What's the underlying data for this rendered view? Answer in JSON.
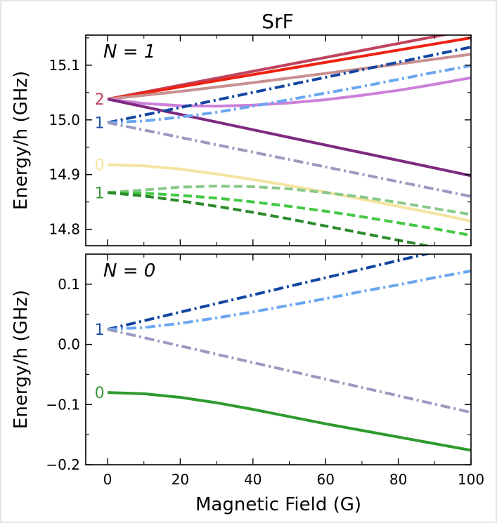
{
  "chart_data": [
    {
      "type": "line",
      "title": "SrF",
      "panel_label": "N = 1",
      "xlabel": "",
      "ylabel": "Energy/h (GHz)",
      "xlim": [
        -6,
        100
      ],
      "ylim": [
        14.77,
        15.155
      ],
      "xticks": [
        0,
        20,
        40,
        60,
        80,
        100
      ],
      "yticks": [
        14.8,
        14.9,
        15.0,
        15.1
      ],
      "level_labels": [
        {
          "text": "2",
          "y": 15.038,
          "color": "#c0445f"
        },
        {
          "text": "1",
          "y": 14.995,
          "color": "#1f4ea3"
        },
        {
          "text": "0",
          "y": 14.918,
          "color": "#f3e4a0"
        },
        {
          "text": "1",
          "y": 14.867,
          "color": "#3a9a3a"
        }
      ],
      "series": [
        {
          "color": "#c0445f",
          "dash": "solid",
          "x": [
            0,
            100
          ],
          "y": [
            15.038,
            15.165
          ]
        },
        {
          "color": "#ee2211",
          "dash": "solid",
          "x": [
            0,
            100
          ],
          "y": [
            15.038,
            15.15
          ]
        },
        {
          "color": "#c89090",
          "dash": "solid",
          "x": [
            0,
            20,
            40,
            60,
            80,
            100
          ],
          "y": [
            15.038,
            15.052,
            15.068,
            15.085,
            15.102,
            15.12
          ]
        },
        {
          "color": "#cc80d8",
          "dash": "solid",
          "x": [
            0,
            10,
            20,
            30,
            40,
            50,
            60,
            70,
            80,
            90,
            100
          ],
          "y": [
            15.038,
            15.03,
            15.026,
            15.025,
            15.027,
            15.031,
            15.037,
            15.045,
            15.054,
            15.065,
            15.077
          ]
        },
        {
          "color": "#7d2a80",
          "dash": "solid",
          "x": [
            0,
            100
          ],
          "y": [
            15.038,
            14.898
          ]
        },
        {
          "color": "#1246a0",
          "dash": "dashdot",
          "x": [
            0,
            100
          ],
          "y": [
            14.995,
            15.133
          ]
        },
        {
          "color": "#6aa6f0",
          "dash": "dashdot",
          "x": [
            0,
            10,
            20,
            30,
            40,
            50,
            60,
            70,
            80,
            90,
            100
          ],
          "y": [
            14.995,
            14.998,
            15.005,
            15.014,
            15.025,
            15.037,
            15.049,
            15.061,
            15.074,
            15.087,
            15.099
          ]
        },
        {
          "color": "#9a9ac0",
          "dash": "dashdot",
          "x": [
            0,
            100
          ],
          "y": [
            14.995,
            14.86
          ]
        },
        {
          "color": "#f3e4a0",
          "dash": "solid",
          "x": [
            0,
            10,
            20,
            30,
            40,
            50,
            60,
            70,
            80,
            90,
            100
          ],
          "y": [
            14.918,
            14.916,
            14.91,
            14.901,
            14.891,
            14.88,
            14.868,
            14.855,
            14.842,
            14.829,
            14.815
          ]
        },
        {
          "color": "#88c888",
          "dash": "dashed",
          "x": [
            0,
            10,
            20,
            30,
            40,
            50,
            60,
            70,
            80,
            90,
            100
          ],
          "y": [
            14.867,
            14.872,
            14.877,
            14.879,
            14.878,
            14.874,
            14.867,
            14.859,
            14.849,
            14.838,
            14.827
          ]
        },
        {
          "color": "#44c844",
          "dash": "dashed",
          "x": [
            0,
            10,
            20,
            30,
            40,
            50,
            60,
            70,
            80,
            90,
            100
          ],
          "y": [
            14.867,
            14.866,
            14.862,
            14.857,
            14.85,
            14.842,
            14.833,
            14.823,
            14.812,
            14.801,
            14.789
          ]
        },
        {
          "color": "#2a8a2a",
          "dash": "dashed",
          "x": [
            0,
            10,
            20,
            30,
            40,
            50,
            60,
            70,
            80,
            90,
            100
          ],
          "y": [
            14.867,
            14.861,
            14.852,
            14.842,
            14.831,
            14.819,
            14.806,
            14.793,
            14.78,
            14.767,
            14.753
          ]
        }
      ]
    },
    {
      "type": "line",
      "panel_label": "N = 0",
      "xlabel": "Magnetic Field (G)",
      "ylabel": "Energy/h (GHz)",
      "xlim": [
        -6,
        100
      ],
      "ylim": [
        -0.2,
        0.15
      ],
      "xticks": [
        0,
        20,
        40,
        60,
        80,
        100
      ],
      "xtick_labels": [
        "0",
        "20",
        "40",
        "60",
        "80",
        "100"
      ],
      "yticks": [
        -0.2,
        -0.1,
        0.0,
        0.1
      ],
      "ytick_labels": [
        "−0.2",
        "−0.1",
        "0.0",
        "0.1"
      ],
      "level_labels": [
        {
          "text": "1",
          "y": 0.025,
          "color": "#1f4ea3"
        },
        {
          "text": "0",
          "y": -0.08,
          "color": "#3a9a3a"
        }
      ],
      "series": [
        {
          "color": "#1246a0",
          "dash": "dashdot",
          "x": [
            0,
            100
          ],
          "y": [
            0.025,
            0.168
          ]
        },
        {
          "color": "#6aa6f0",
          "dash": "dashdot",
          "x": [
            0,
            10,
            20,
            30,
            40,
            50,
            60,
            70,
            80,
            90,
            100
          ],
          "y": [
            0.025,
            0.028,
            0.035,
            0.044,
            0.054,
            0.065,
            0.076,
            0.088,
            0.099,
            0.111,
            0.122
          ]
        },
        {
          "color": "#9a9ac0",
          "dash": "dashdot",
          "x": [
            0,
            100
          ],
          "y": [
            0.025,
            -0.113
          ]
        },
        {
          "color": "#2e9a2e",
          "dash": "solid",
          "x": [
            0,
            10,
            20,
            30,
            40,
            50,
            60,
            70,
            80,
            90,
            100
          ],
          "y": [
            -0.08,
            -0.082,
            -0.088,
            -0.097,
            -0.108,
            -0.12,
            -0.132,
            -0.143,
            -0.154,
            -0.165,
            -0.176
          ]
        }
      ]
    }
  ]
}
